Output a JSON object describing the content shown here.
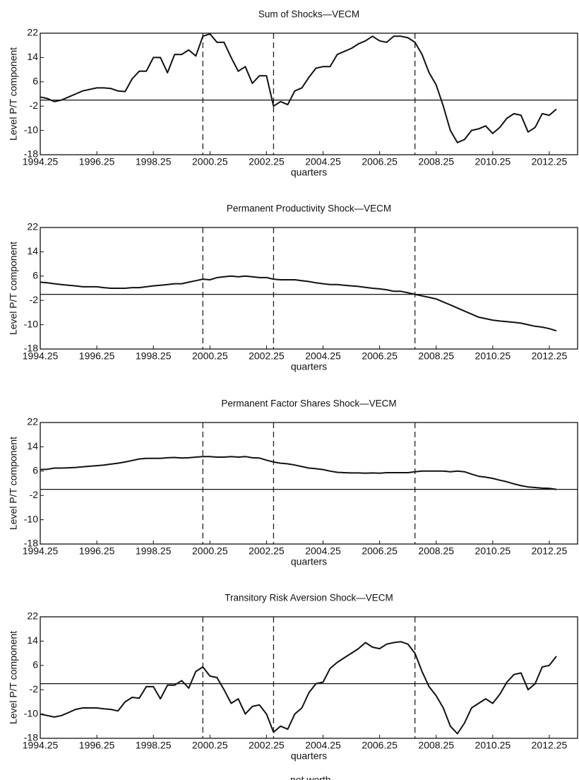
{
  "chart_data": [
    {
      "type": "line",
      "title": "Sum of Shocks—VECM",
      "ylabel": "Level P/T component",
      "xlabel": "quarters",
      "x": [
        1994.25,
        1994.5,
        1994.75,
        1995,
        1995.25,
        1995.5,
        1995.75,
        1996,
        1996.25,
        1996.5,
        1996.75,
        1997,
        1997.25,
        1997.5,
        1997.75,
        1998,
        1998.25,
        1998.5,
        1998.75,
        1999,
        1999.25,
        1999.5,
        1999.75,
        2000,
        2000.25,
        2000.5,
        2000.75,
        2001,
        2001.25,
        2001.5,
        2001.75,
        2002,
        2002.25,
        2002.5,
        2002.75,
        2003,
        2003.25,
        2003.5,
        2003.75,
        2004,
        2004.25,
        2004.5,
        2004.75,
        2005,
        2005.25,
        2005.5,
        2005.75,
        2006,
        2006.25,
        2006.5,
        2006.75,
        2007,
        2007.25,
        2007.5,
        2007.75,
        2008,
        2008.25,
        2008.5,
        2008.75,
        2009,
        2009.25,
        2009.5,
        2009.75,
        2010,
        2010.25,
        2010.5,
        2010.75,
        2011,
        2011.25,
        2011.5,
        2011.75,
        2012,
        2012.25,
        2012.5
      ],
      "series": [
        {
          "color": "#111111",
          "values": [
            1,
            0.5,
            -0.5,
            0,
            1,
            2,
            3,
            3.5,
            4,
            4,
            3.8,
            3,
            2.8,
            7,
            9.5,
            9.5,
            14,
            14,
            9,
            15,
            15,
            16.5,
            14.5,
            21,
            21.8,
            19,
            19,
            14,
            9.5,
            11,
            5.5,
            8,
            8,
            -2,
            -0.5,
            -1.5,
            3,
            4,
            7.5,
            10.5,
            11,
            11,
            15,
            16,
            17,
            18.5,
            19.5,
            21,
            19.5,
            19,
            21,
            21,
            20.5,
            19,
            15,
            9,
            5,
            -2,
            -10,
            -14,
            -13,
            -10,
            -9.5,
            -8.5,
            -11,
            -9,
            -6,
            -4.5,
            -5,
            -10.5,
            -9,
            -4.5,
            -5,
            -3
          ]
        }
      ],
      "xlim": [
        1994.25,
        2013.25
      ],
      "ylim": [
        -18,
        22
      ],
      "xticks": [
        1994.25,
        1996.25,
        1998.25,
        2000.25,
        2002.25,
        2004.25,
        2006.25,
        2008.25,
        2010.25,
        2012.25
      ],
      "yticks": [
        -18,
        -10,
        -2,
        6,
        14,
        22
      ],
      "vlines": [
        2000,
        2002.5,
        2007.5
      ],
      "hline": 0
    },
    {
      "type": "line",
      "title": "Permanent Productivity Shock—VECM",
      "ylabel": "Level P/T component",
      "xlabel": "quarters",
      "x": [
        1994.25,
        1994.5,
        1994.75,
        1995,
        1995.25,
        1995.5,
        1995.75,
        1996,
        1996.25,
        1996.5,
        1996.75,
        1997,
        1997.25,
        1997.5,
        1997.75,
        1998,
        1998.25,
        1998.5,
        1998.75,
        1999,
        1999.25,
        1999.5,
        1999.75,
        2000,
        2000.25,
        2000.5,
        2000.75,
        2001,
        2001.25,
        2001.5,
        2001.75,
        2002,
        2002.25,
        2002.5,
        2002.75,
        2003,
        2003.25,
        2003.5,
        2003.75,
        2004,
        2004.25,
        2004.5,
        2004.75,
        2005,
        2005.25,
        2005.5,
        2005.75,
        2006,
        2006.25,
        2006.5,
        2006.75,
        2007,
        2007.25,
        2007.5,
        2007.75,
        2008,
        2008.25,
        2008.5,
        2008.75,
        2009,
        2009.25,
        2009.5,
        2009.75,
        2010,
        2010.25,
        2010.5,
        2010.75,
        2011,
        2011.25,
        2011.5,
        2011.75,
        2012,
        2012.25,
        2012.5
      ],
      "series": [
        {
          "color": "#111111",
          "values": [
            4,
            3.8,
            3.5,
            3.2,
            3,
            2.8,
            2.5,
            2.5,
            2.5,
            2.2,
            2,
            2,
            2,
            2.2,
            2.2,
            2.5,
            2.8,
            3,
            3.2,
            3.5,
            3.5,
            4,
            4.5,
            5,
            4.8,
            5.5,
            5.8,
            6,
            5.8,
            6,
            5.8,
            5.5,
            5.5,
            5,
            4.8,
            4.8,
            4.8,
            4.5,
            4.2,
            3.8,
            3.5,
            3.2,
            3.2,
            3,
            2.8,
            2.6,
            2.3,
            2,
            1.8,
            1.5,
            1,
            1,
            0.5,
            0,
            -0.5,
            -1,
            -1.5,
            -2.5,
            -3.5,
            -4.5,
            -5.5,
            -6.5,
            -7.5,
            -8,
            -8.5,
            -8.8,
            -9,
            -9.2,
            -9.5,
            -10,
            -10.5,
            -10.8,
            -11.3,
            -12
          ]
        }
      ],
      "xlim": [
        1994.25,
        2013.25
      ],
      "ylim": [
        -18,
        22
      ],
      "xticks": [
        1994.25,
        1996.25,
        1998.25,
        2000.25,
        2002.25,
        2004.25,
        2006.25,
        2008.25,
        2010.25,
        2012.25
      ],
      "yticks": [
        -18,
        -10,
        -2,
        6,
        14,
        22
      ],
      "vlines": [
        2000,
        2002.5,
        2007.5
      ],
      "hline": 0
    },
    {
      "type": "line",
      "title": "Permanent Factor Shares Shock—VECM",
      "ylabel": "Level P/T component",
      "xlabel": "quarters",
      "x": [
        1994.25,
        1994.5,
        1994.75,
        1995,
        1995.25,
        1995.5,
        1995.75,
        1996,
        1996.25,
        1996.5,
        1996.75,
        1997,
        1997.25,
        1997.5,
        1997.75,
        1998,
        1998.25,
        1998.5,
        1998.75,
        1999,
        1999.25,
        1999.5,
        1999.75,
        2000,
        2000.25,
        2000.5,
        2000.75,
        2001,
        2001.25,
        2001.5,
        2001.75,
        2002,
        2002.25,
        2002.5,
        2002.75,
        2003,
        2003.25,
        2003.5,
        2003.75,
        2004,
        2004.25,
        2004.5,
        2004.75,
        2005,
        2005.25,
        2005.5,
        2005.75,
        2006,
        2006.25,
        2006.5,
        2006.75,
        2007,
        2007.25,
        2007.5,
        2007.75,
        2008,
        2008.25,
        2008.5,
        2008.75,
        2009,
        2009.25,
        2009.5,
        2009.75,
        2010,
        2010.25,
        2010.5,
        2010.75,
        2011,
        2011.25,
        2011.5,
        2011.75,
        2012,
        2012.25,
        2012.5
      ],
      "series": [
        {
          "color": "#111111",
          "values": [
            6.5,
            6.6,
            7,
            7,
            7.1,
            7.2,
            7.4,
            7.6,
            7.8,
            8,
            8.3,
            8.6,
            9,
            9.5,
            10,
            10.2,
            10.2,
            10.2,
            10.4,
            10.5,
            10.3,
            10.4,
            10.6,
            10.8,
            10.8,
            10.6,
            10.6,
            10.8,
            10.6,
            10.8,
            10.4,
            10.3,
            9.6,
            9,
            8.6,
            8.4,
            8,
            7.5,
            7,
            6.8,
            6.5,
            6,
            5.6,
            5.5,
            5.4,
            5.4,
            5.3,
            5.4,
            5.3,
            5.5,
            5.5,
            5.5,
            5.5,
            5.8,
            6,
            6,
            6,
            6,
            5.8,
            6,
            5.8,
            5,
            4.3,
            4,
            3.6,
            3,
            2.5,
            1.8,
            1.2,
            0.8,
            0.6,
            0.4,
            0.3,
            0
          ]
        }
      ],
      "xlim": [
        1994.25,
        2013.25
      ],
      "ylim": [
        -18,
        22
      ],
      "xticks": [
        1994.25,
        1996.25,
        1998.25,
        2000.25,
        2002.25,
        2004.25,
        2006.25,
        2008.25,
        2010.25,
        2012.25
      ],
      "yticks": [
        -18,
        -10,
        -2,
        6,
        14,
        22
      ],
      "vlines": [
        2000,
        2002.5,
        2007.5
      ],
      "hline": 0
    },
    {
      "type": "line",
      "title": "Transitory Risk Aversion Shock—VECM",
      "ylabel": "Level P/T component",
      "xlabel": "quarters",
      "x": [
        1994.25,
        1994.5,
        1994.75,
        1995,
        1995.25,
        1995.5,
        1995.75,
        1996,
        1996.25,
        1996.5,
        1996.75,
        1997,
        1997.25,
        1997.5,
        1997.75,
        1998,
        1998.25,
        1998.5,
        1998.75,
        1999,
        1999.25,
        1999.5,
        1999.75,
        2000,
        2000.25,
        2000.5,
        2000.75,
        2001,
        2001.25,
        2001.5,
        2001.75,
        2002,
        2002.25,
        2002.5,
        2002.75,
        2003,
        2003.25,
        2003.5,
        2003.75,
        2004,
        2004.25,
        2004.5,
        2004.75,
        2005,
        2005.25,
        2005.5,
        2005.75,
        2006,
        2006.25,
        2006.5,
        2006.75,
        2007,
        2007.25,
        2007.5,
        2007.75,
        2008,
        2008.25,
        2008.5,
        2008.75,
        2009,
        2009.25,
        2009.5,
        2009.75,
        2010,
        2010.25,
        2010.5,
        2010.75,
        2011,
        2011.25,
        2011.5,
        2011.75,
        2012,
        2012.25,
        2012.5
      ],
      "series": [
        {
          "name": "net worth",
          "color": "#111111",
          "values": [
            -10,
            -10.5,
            -11,
            -10.5,
            -9.5,
            -8.5,
            -8,
            -8,
            -8,
            -8.3,
            -8.5,
            -9,
            -6,
            -4.5,
            -4.8,
            -1,
            -1,
            -5,
            -0.5,
            -0.5,
            1,
            -1.5,
            4,
            5.5,
            2.5,
            2,
            -2,
            -6.5,
            -5,
            -10,
            -7.5,
            -7,
            -10,
            -16,
            -14,
            -15,
            -10,
            -8,
            -3,
            0,
            0.5,
            5,
            7,
            8.5,
            10,
            11.5,
            13.5,
            12,
            11.5,
            13,
            13.5,
            13.8,
            13,
            10,
            4,
            -1,
            -4,
            -8,
            -14,
            -16.5,
            -13,
            -8,
            -6.5,
            -5,
            -6.5,
            -3.5,
            0.5,
            3,
            3.5,
            -2,
            0,
            5.5,
            6,
            9
          ]
        }
      ],
      "xlim": [
        1994.25,
        2013.25
      ],
      "ylim": [
        -18,
        22
      ],
      "xticks": [
        1994.25,
        1996.25,
        1998.25,
        2000.25,
        2002.25,
        2004.25,
        2006.25,
        2008.25,
        2010.25,
        2012.25
      ],
      "yticks": [
        -18,
        -10,
        -2,
        6,
        14,
        22
      ],
      "vlines": [
        2000,
        2002.5,
        2007.5
      ],
      "hline": 0
    }
  ]
}
